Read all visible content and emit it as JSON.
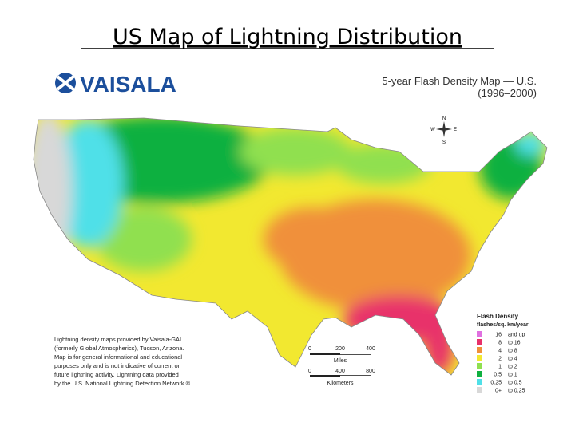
{
  "title": "US Map of Lightning Distribution",
  "logo": "VAISALA",
  "map_title": "5-year Flash Density Map — U.S.",
  "map_period": "(1996–2000)",
  "compass": {
    "n": "N",
    "e": "E",
    "s": "S",
    "w": "W"
  },
  "legend": {
    "title": "Flash Density",
    "unit": "flashes/sq. km/year",
    "rows": [
      [
        "16",
        "and up"
      ],
      [
        "8",
        "to 16"
      ],
      [
        "4",
        "to 8"
      ],
      [
        "2",
        "to 4"
      ],
      [
        "1",
        "to 2"
      ],
      [
        "0.5",
        "to 1"
      ],
      [
        "0.25",
        "to 0.5"
      ],
      [
        "0+",
        "to 0.25"
      ]
    ]
  },
  "scale": {
    "miles": {
      "ticks": [
        "0",
        "200",
        "400"
      ],
      "label": "Miles"
    },
    "km": {
      "ticks": [
        "0",
        "400",
        "800"
      ],
      "label": "Kilometers"
    }
  },
  "credit": [
    "Lightning density maps provided by Vaisala-GAI",
    "(formerly Global Atmospherics), Tucson, Arizona.",
    "Map is for general informational and educational",
    "purposes only and is not indicative of current or",
    "future lightning activity. Lightning data provided",
    "by the U.S. National Lightning Detection Network.®"
  ]
}
